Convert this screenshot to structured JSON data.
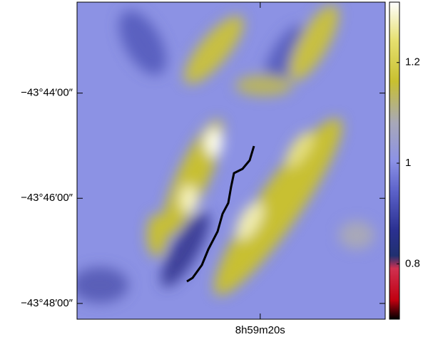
{
  "chart_data": {
    "type": "image",
    "xlim": [
      32379.2,
      32346.9
    ],
    "xticks": [
      {
        "value": 32360,
        "label": "8h59m20s"
      }
    ],
    "ylim": [
      -2628.3,
      -2622.27
    ],
    "yticks": [
      {
        "value": -2624,
        "label": "−43°44′00″"
      },
      {
        "value": -2626,
        "label": "−43°46′00″"
      },
      {
        "value": -2628,
        "label": "−43°48′00″"
      }
    ],
    "clim": [
      0.69,
      1.32
    ],
    "cticks": [
      0.8,
      1,
      1.2
    ]
  }
}
